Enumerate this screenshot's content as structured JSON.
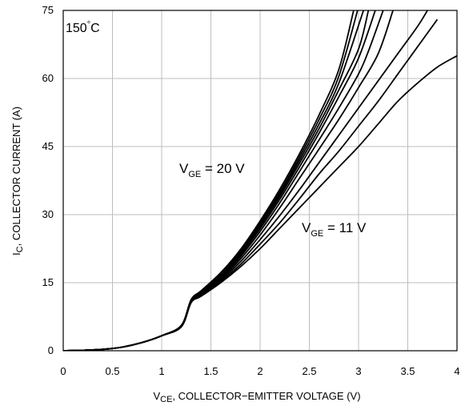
{
  "chart_data": {
    "type": "line",
    "title": "",
    "xlabel": {
      "main": "V",
      "sub": "CE",
      "rest": ", COLLECTOR−EMITTER VOLTAGE (V)"
    },
    "ylabel": {
      "main": "I",
      "sub": "C",
      "rest": ", COLLECTOR CURRENT (A)"
    },
    "xlim": [
      0,
      4
    ],
    "ylim": [
      0,
      75
    ],
    "x_ticks": [
      "0",
      "0.5",
      "1",
      "1.5",
      "2",
      "2.5",
      "3",
      "3.5",
      "4"
    ],
    "y_ticks": [
      "0",
      "15",
      "30",
      "45",
      "60",
      "75"
    ],
    "grid": true,
    "temperature_label": {
      "value": "150",
      "deg": "°",
      "unit": "C"
    },
    "annotations": {
      "top": {
        "main": "V",
        "sub": "GE",
        "rest": " = 20 V"
      },
      "bottom": {
        "main": "V",
        "sub": "GE",
        "rest": " = 11 V"
      }
    },
    "series": [
      {
        "x": [
          0,
          0.2,
          0.4,
          0.6,
          0.8,
          1.0,
          1.2,
          1.3,
          1.4,
          1.6,
          1.8,
          2.0,
          2.2,
          2.4,
          2.6,
          2.8,
          3.0,
          3.2,
          3.4,
          3.6,
          3.8,
          4.0
        ],
        "y": [
          0,
          0.1,
          0.3,
          0.8,
          1.8,
          3.3,
          5.3,
          10.6,
          12.0,
          15.0,
          18.5,
          22.5,
          27.0,
          31.5,
          36.0,
          40.5,
          45.0,
          50.0,
          55.0,
          59.0,
          62.5,
          65.0
        ]
      },
      {
        "x": [
          0,
          0.2,
          0.4,
          0.6,
          0.8,
          1.0,
          1.2,
          1.3,
          1.4,
          1.6,
          1.8,
          2.0,
          2.2,
          2.4,
          2.6,
          2.8,
          3.0,
          3.2,
          3.4,
          3.6,
          3.8
        ],
        "y": [
          0,
          0.1,
          0.3,
          0.8,
          1.8,
          3.3,
          5.3,
          10.7,
          12.2,
          15.3,
          19.0,
          23.5,
          28.2,
          33.5,
          39.0,
          44.0,
          49.5,
          55.0,
          61.0,
          67.0,
          73.0
        ]
      },
      {
        "x": [
          0,
          0.2,
          0.4,
          0.6,
          0.8,
          1.0,
          1.2,
          1.3,
          1.4,
          1.6,
          1.8,
          2.0,
          2.2,
          2.4,
          2.6,
          2.8,
          3.0,
          3.2,
          3.4,
          3.6,
          3.7
        ],
        "y": [
          0,
          0.1,
          0.3,
          0.8,
          1.8,
          3.3,
          5.4,
          10.8,
          12.4,
          15.6,
          19.6,
          24.5,
          29.8,
          35.5,
          41.5,
          47.5,
          53.5,
          59.5,
          65.5,
          71.5,
          75.0
        ]
      },
      {
        "x": [
          0,
          0.2,
          0.4,
          0.6,
          0.8,
          1.0,
          1.2,
          1.3,
          1.4,
          1.6,
          1.8,
          2.0,
          2.2,
          2.4,
          2.6,
          2.8,
          3.0,
          3.2,
          3.35
        ],
        "y": [
          0,
          0.1,
          0.3,
          0.8,
          1.8,
          3.3,
          5.4,
          10.9,
          12.6,
          15.9,
          20.2,
          25.5,
          31.5,
          38.0,
          44.5,
          51.0,
          58.0,
          65.5,
          75.0
        ]
      },
      {
        "x": [
          0,
          0.2,
          0.4,
          0.6,
          0.8,
          1.0,
          1.2,
          1.3,
          1.4,
          1.6,
          1.8,
          2.0,
          2.2,
          2.4,
          2.6,
          2.8,
          3.0,
          3.1,
          3.25
        ],
        "y": [
          0,
          0.1,
          0.3,
          0.8,
          1.8,
          3.3,
          5.5,
          11.0,
          12.7,
          16.2,
          20.7,
          26.3,
          32.6,
          39.5,
          46.5,
          53.5,
          61.0,
          66.0,
          75.0
        ]
      },
      {
        "x": [
          0,
          0.2,
          0.4,
          0.6,
          0.8,
          1.0,
          1.2,
          1.3,
          1.4,
          1.6,
          1.8,
          2.0,
          2.2,
          2.4,
          2.6,
          2.8,
          3.0,
          3.17
        ],
        "y": [
          0,
          0.1,
          0.3,
          0.8,
          1.8,
          3.3,
          5.5,
          11.1,
          12.8,
          16.4,
          21.1,
          26.9,
          33.4,
          40.5,
          48.0,
          56.0,
          64.5,
          75.0
        ]
      },
      {
        "x": [
          0,
          0.2,
          0.4,
          0.6,
          0.8,
          1.0,
          1.2,
          1.3,
          1.4,
          1.6,
          1.8,
          2.0,
          2.2,
          2.4,
          2.6,
          2.8,
          3.0,
          3.1
        ],
        "y": [
          0,
          0.1,
          0.3,
          0.8,
          1.8,
          3.3,
          5.5,
          11.1,
          12.9,
          16.6,
          21.4,
          27.4,
          34.0,
          41.3,
          49.0,
          57.5,
          66.5,
          75.0
        ]
      },
      {
        "x": [
          0,
          0.2,
          0.4,
          0.6,
          0.8,
          1.0,
          1.2,
          1.3,
          1.4,
          1.6,
          1.8,
          2.0,
          2.2,
          2.4,
          2.6,
          2.8,
          3.05
        ],
        "y": [
          0,
          0.1,
          0.3,
          0.8,
          1.8,
          3.3,
          5.6,
          11.2,
          13.0,
          16.8,
          21.7,
          27.8,
          34.5,
          42.0,
          50.0,
          59.0,
          75.0
        ]
      },
      {
        "x": [
          0,
          0.2,
          0.4,
          0.6,
          0.8,
          1.0,
          1.2,
          1.3,
          1.4,
          1.6,
          1.8,
          2.0,
          2.2,
          2.4,
          2.6,
          2.8,
          2.99
        ],
        "y": [
          0,
          0.1,
          0.3,
          0.8,
          1.8,
          3.3,
          5.6,
          11.2,
          13.1,
          17.0,
          22.0,
          28.2,
          35.0,
          42.7,
          51.0,
          60.5,
          75.0
        ]
      },
      {
        "x": [
          0,
          0.2,
          0.4,
          0.6,
          0.8,
          1.0,
          1.2,
          1.3,
          1.4,
          1.6,
          1.8,
          2.0,
          2.2,
          2.4,
          2.6,
          2.8,
          2.95
        ],
        "y": [
          0,
          0.1,
          0.3,
          0.8,
          1.8,
          3.3,
          5.6,
          11.3,
          13.2,
          17.2,
          22.3,
          28.6,
          35.6,
          43.4,
          52.0,
          62.0,
          75.0
        ]
      }
    ]
  }
}
